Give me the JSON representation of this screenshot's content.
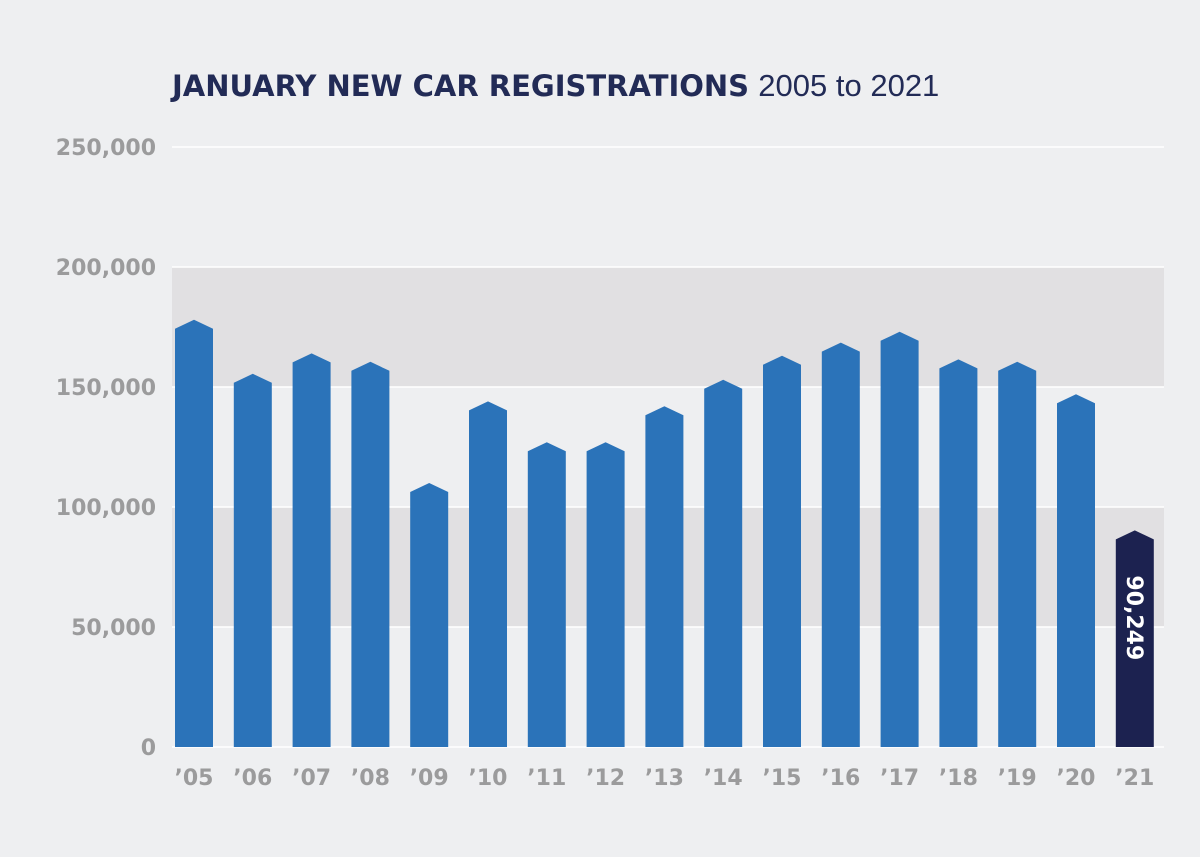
{
  "chart_data": {
    "type": "bar",
    "title": "JANUARY NEW CAR REGISTRATIONS",
    "subtitle": "2005 to 2021",
    "xlabel": "",
    "ylabel": "",
    "categories": [
      "’05",
      "’06",
      "’07",
      "’08",
      "’09",
      "’10",
      "’11",
      "’12",
      "’13",
      "’14",
      "’15",
      "’16",
      "’17",
      "’18",
      "’19",
      "’20",
      "’21"
    ],
    "values": [
      178000,
      155500,
      164000,
      160500,
      110000,
      144000,
      127000,
      127000,
      142000,
      153000,
      163000,
      168500,
      173000,
      161500,
      160500,
      147000,
      90249
    ],
    "ylim": [
      0,
      250000
    ],
    "yticks": [
      0,
      50000,
      100000,
      150000,
      200000,
      250000
    ],
    "ytick_labels": [
      "0",
      "50,000",
      "100,000",
      "150,000",
      "200,000",
      "250,000"
    ],
    "grid": true,
    "shaded_bands": [
      [
        50000,
        100000
      ],
      [
        150000,
        200000
      ]
    ],
    "highlight_index": 16,
    "data_labels": [
      {
        "index": 16,
        "text": "90,249"
      }
    ],
    "colors": {
      "background": "#eeeff1",
      "band": "#e1e0e2",
      "bar": "#2b73b9",
      "highlight_bar": "#1c2250",
      "title": "#222b56",
      "tick": "#9b9b9c",
      "gridline": "#ffffff"
    }
  }
}
